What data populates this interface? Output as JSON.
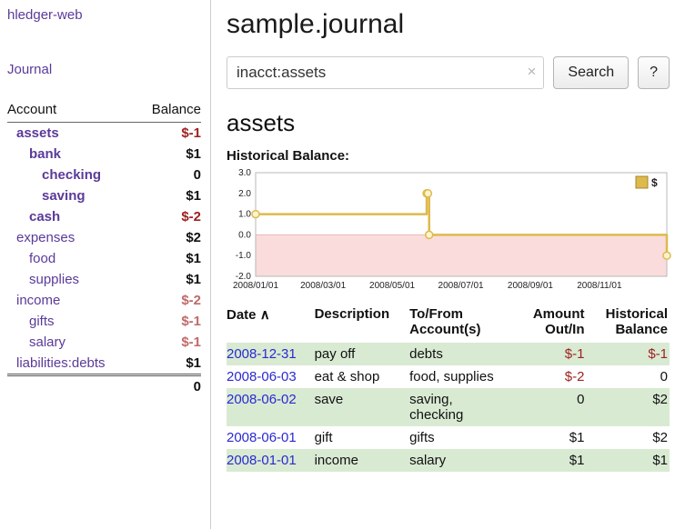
{
  "app": {
    "brand": "hledger-web",
    "journal_link": "Journal"
  },
  "sidebar": {
    "header": {
      "account": "Account",
      "balance": "Balance"
    },
    "accounts": [
      {
        "name": "assets",
        "indent": 0,
        "balance": "$-1",
        "bold": true,
        "neg": "strong"
      },
      {
        "name": "bank",
        "indent": 1,
        "balance": "$1",
        "bold": true
      },
      {
        "name": "checking",
        "indent": 2,
        "balance": "0",
        "bold": true
      },
      {
        "name": "saving",
        "indent": 2,
        "balance": "$1",
        "bold": true
      },
      {
        "name": "cash",
        "indent": 1,
        "balance": "$-2",
        "bold": true,
        "neg": "strong"
      },
      {
        "name": "expenses",
        "indent": 0,
        "balance": "$2"
      },
      {
        "name": "food",
        "indent": 1,
        "balance": "$1"
      },
      {
        "name": "supplies",
        "indent": 1,
        "balance": "$1"
      },
      {
        "name": "income",
        "indent": 0,
        "balance": "$-2",
        "neg": "soft"
      },
      {
        "name": "gifts",
        "indent": 1,
        "balance": "$-1",
        "neg": "soft"
      },
      {
        "name": "salary",
        "indent": 1,
        "balance": "$-1",
        "neg": "soft"
      },
      {
        "name": "liabilities:debts",
        "indent": 0,
        "balance": "$1"
      }
    ],
    "total": "0"
  },
  "main": {
    "title": "sample.journal",
    "search": {
      "value": "inacct:assets",
      "clear_icon": "×",
      "button": "Search",
      "help_button": "?"
    },
    "account_heading": "assets",
    "chart_label": "Historical Balance:"
  },
  "chart_data": {
    "type": "line",
    "title": "Historical Balance:",
    "xlabel": "",
    "ylabel": "",
    "ylim": [
      -2.0,
      3.0
    ],
    "yticks": [
      3.0,
      2.0,
      1.0,
      0.0,
      -1.0,
      -2.0
    ],
    "xticks": [
      {
        "label": "2008/01/01",
        "f": 0.0
      },
      {
        "label": "2008/03/01",
        "f": 0.164
      },
      {
        "label": "2008/05/01",
        "f": 0.332
      },
      {
        "label": "2008/07/01",
        "f": 0.499
      },
      {
        "label": "2008/09/01",
        "f": 0.668
      },
      {
        "label": "2008/11/01",
        "f": 0.836
      }
    ],
    "legend_position": "top-right",
    "negative_region_color": "#fadcdc",
    "grid": false,
    "series": [
      {
        "name": "$",
        "color": "#ddba4d",
        "marker_fill": "#fdf3cf",
        "step": true,
        "points": [
          {
            "date": "2008-01-01",
            "f": 0.0,
            "value": 1
          },
          {
            "date": "2008-06-01",
            "f": 0.416,
            "value": 2
          },
          {
            "date": "2008-06-02",
            "f": 0.419,
            "value": 2
          },
          {
            "date": "2008-06-03",
            "f": 0.422,
            "value": 0
          },
          {
            "date": "2008-12-31",
            "f": 1.0,
            "value": -1
          }
        ]
      }
    ]
  },
  "register": {
    "header": {
      "date": "Date",
      "sort_icon": "∧",
      "description": "Description",
      "account": "To/From\nAccount(s)",
      "amount": "Amount\nOut/In",
      "balance": "Historical\nBalance"
    },
    "rows": [
      {
        "date": "2008-12-31",
        "description": "pay off",
        "accounts": "debts",
        "amount": "$-1",
        "amount_neg": true,
        "balance": "$-1",
        "balance_neg": true,
        "shaded": true
      },
      {
        "date": "2008-06-03",
        "description": "eat & shop",
        "accounts": "food, supplies",
        "amount": "$-2",
        "amount_neg": true,
        "balance": "0",
        "balance_neg": false,
        "shaded": false
      },
      {
        "date": "2008-06-02",
        "description": "save",
        "accounts": "saving,\nchecking",
        "amount": "0",
        "amount_neg": false,
        "balance": "$2",
        "balance_neg": false,
        "shaded": true
      },
      {
        "date": "2008-06-01",
        "description": "gift",
        "accounts": "gifts",
        "amount": "$1",
        "amount_neg": false,
        "balance": "$2",
        "balance_neg": false,
        "shaded": false
      },
      {
        "date": "2008-01-01",
        "description": "income",
        "accounts": "salary",
        "amount": "$1",
        "amount_neg": false,
        "balance": "$1",
        "balance_neg": false,
        "shaded": true
      }
    ]
  },
  "colors": {
    "link_purple": "#5b3a9a",
    "date_blue": "#2a2ad0",
    "negative_strong": "#9e2121",
    "negative_soft": "#c06a6a",
    "row_green": "#d9ead3",
    "chart_gold": "#ddba4d",
    "chart_negative_pink": "#fadcdc"
  }
}
